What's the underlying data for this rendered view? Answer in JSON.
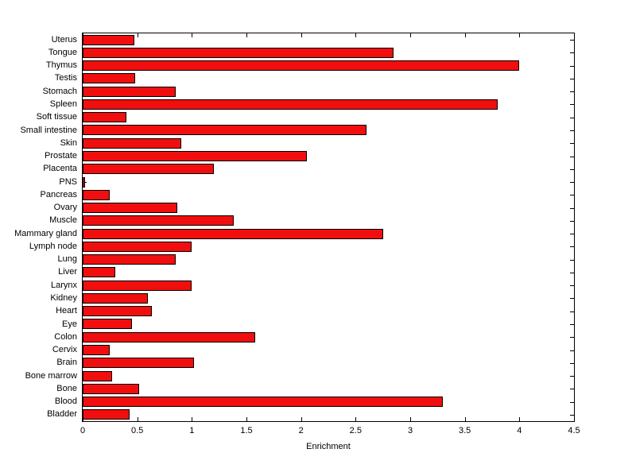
{
  "chart_data": {
    "type": "bar",
    "orientation": "horizontal",
    "title": "",
    "xlabel": "Enrichment",
    "ylabel": "",
    "xlim": [
      0,
      4.5
    ],
    "xtick_values": [
      0,
      0.5,
      1,
      1.5,
      2,
      2.5,
      3,
      3.5,
      4,
      4.5
    ],
    "xtick_labels": [
      "0",
      "0.5",
      "1",
      "1.5",
      "2",
      "2.5",
      "3",
      "3.5",
      "4",
      "4.5"
    ],
    "grid": false,
    "legend": "none",
    "bar_color": "#f10e0e",
    "bar_edge_color": "#000000",
    "categories_top_to_bottom": [
      "Uterus",
      "Tongue",
      "Thymus",
      "Testis",
      "Stomach",
      "Spleen",
      "Soft tissue",
      "Small intestine",
      "Skin",
      "Prostate",
      "Placenta",
      "PNS",
      "Pancreas",
      "Ovary",
      "Muscle",
      "Mammary gland",
      "Lymph node",
      "Lung",
      "Liver",
      "Larynx",
      "Kidney",
      "Heart",
      "Eye",
      "Colon",
      "Cervix",
      "Brain",
      "Bone marrow",
      "Bone",
      "Blood",
      "Bladder"
    ],
    "values": [
      0.47,
      2.85,
      4.0,
      0.48,
      0.85,
      3.8,
      0.4,
      2.6,
      0.9,
      2.05,
      1.2,
      0.02,
      0.25,
      0.87,
      1.38,
      2.75,
      1.0,
      0.85,
      0.3,
      1.0,
      0.6,
      0.63,
      0.45,
      1.58,
      0.25,
      1.02,
      0.27,
      0.52,
      3.3,
      0.43
    ]
  }
}
